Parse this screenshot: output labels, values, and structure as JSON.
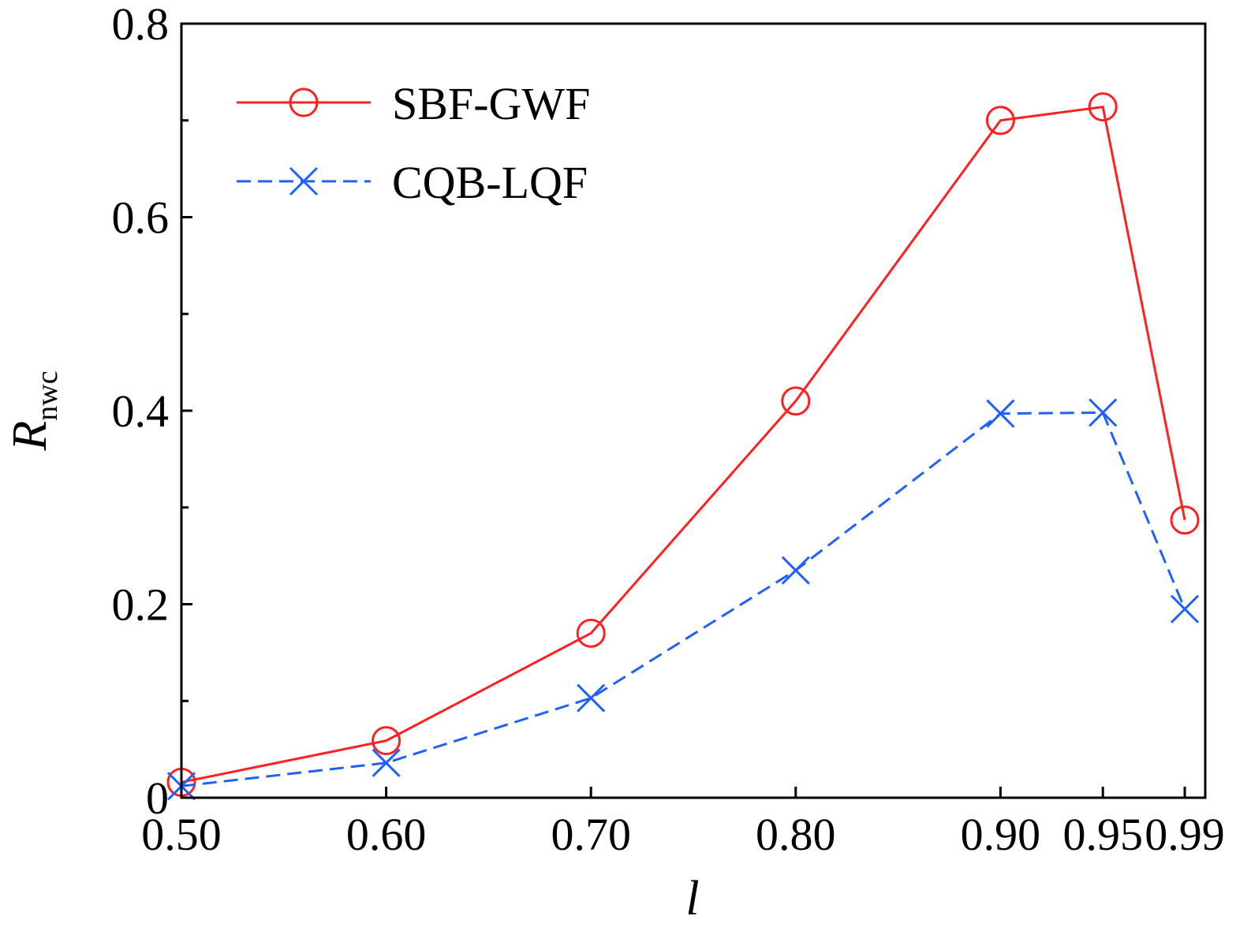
{
  "chart_data": {
    "type": "line",
    "title": "",
    "xlabel": "l",
    "ylabel": "R",
    "ylabel_subscript": "nwc",
    "x": [
      0.5,
      0.6,
      0.7,
      0.8,
      0.9,
      0.95,
      0.99
    ],
    "x_tick_labels": [
      "0.50",
      "0.60",
      "0.70",
      "0.80",
      "0.90",
      "0.95",
      "0.99"
    ],
    "y_ticks": [
      0,
      0.2,
      0.4,
      0.6,
      0.8
    ],
    "y_tick_labels": [
      "0",
      "0.2",
      "0.4",
      "0.6",
      "0.8"
    ],
    "y_minor_ticks": [
      0.1,
      0.3,
      0.5,
      0.7
    ],
    "xlim": [
      0.5,
      1.0
    ],
    "ylim": [
      0,
      0.8
    ],
    "grid": false,
    "legend_position": "top-left",
    "series": [
      {
        "name": "SBF-GWF",
        "color": "#ff2020",
        "marker": "circle",
        "line": "solid",
        "values": [
          0.016,
          0.059,
          0.17,
          0.41,
          0.7,
          0.714,
          0.287
        ]
      },
      {
        "name": "CQB-LQF",
        "color": "#2060ff",
        "marker": "x",
        "line": "dashed",
        "values": [
          0.012,
          0.036,
          0.103,
          0.235,
          0.397,
          0.398,
          0.195
        ]
      }
    ]
  }
}
